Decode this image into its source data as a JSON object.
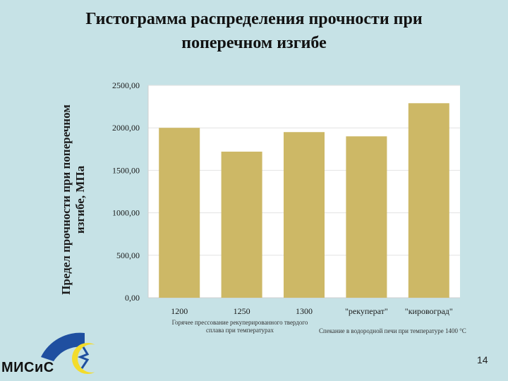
{
  "slide": {
    "title_line1": "Гистограмма распределения прочности при",
    "title_line2": "поперечном изгибе",
    "page_number": "14",
    "logo_text": "МИСиС",
    "note_hot_pressing": "Горячее прессование рекуперированного твердого сплава при температурах",
    "note_sintering": "Спекание в водородной печи при температуре 1400 °C"
  },
  "chart_data": {
    "type": "bar",
    "ylabel_line1": "Предел прочности при поперечном",
    "ylabel_line2": "изгибе, МПа",
    "categories": [
      "1200",
      "1250",
      "1300",
      "\"рекуперат\"",
      "\"кировоград\""
    ],
    "values": [
      2000,
      1720,
      1950,
      1900,
      2290
    ],
    "ylim": [
      0,
      2500
    ],
    "yticks": [
      "0,00",
      "500,00",
      "1000,00",
      "1500,00",
      "2000,00",
      "2500,00"
    ],
    "grid": true,
    "bar_color": "#cdb866",
    "grid_color": "#e2e2e2",
    "plot_background": "#ffffff"
  }
}
